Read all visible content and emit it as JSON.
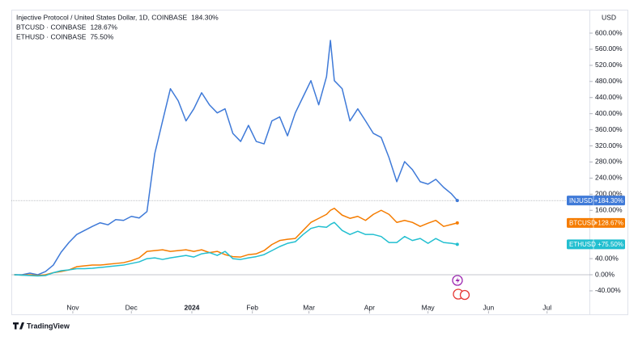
{
  "chart_data": {
    "type": "line",
    "currency_label": "USD",
    "branding": "TradingView",
    "x": [
      -30,
      -26,
      -22,
      -18,
      -14,
      -10,
      -6,
      -2,
      2,
      6,
      10,
      14,
      18,
      22,
      26,
      30,
      34,
      38,
      42,
      46,
      50,
      54,
      58,
      62,
      66,
      70,
      74,
      78,
      82,
      86,
      90,
      94,
      98,
      102,
      106,
      110,
      114,
      118,
      122,
      126,
      130,
      132,
      134,
      138,
      142,
      146,
      150,
      154,
      158,
      162,
      166,
      170,
      174,
      178,
      182,
      186,
      190,
      194,
      197
    ],
    "xlim": [
      -31.5,
      264.7
    ],
    "xticks": [
      {
        "value": 0,
        "label": "Nov"
      },
      {
        "value": 30,
        "label": "Dec"
      },
      {
        "value": 61,
        "label": "2024"
      },
      {
        "value": 92,
        "label": "Feb"
      },
      {
        "value": 121,
        "label": "Mar"
      },
      {
        "value": 152,
        "label": "Apr"
      },
      {
        "value": 182,
        "label": "May"
      },
      {
        "value": 213,
        "label": "Jun"
      },
      {
        "value": 243,
        "label": "Jul"
      }
    ],
    "ylim": [
      -96.3,
      658.2
    ],
    "yticks": [
      {
        "value": 600,
        "label": "600.00%"
      },
      {
        "value": 560,
        "label": "560.00%"
      },
      {
        "value": 520,
        "label": "520.00%"
      },
      {
        "value": 480,
        "label": "480.00%"
      },
      {
        "value": 440,
        "label": "440.00%"
      },
      {
        "value": 400,
        "label": "400.00%"
      },
      {
        "value": 360,
        "label": "360.00%"
      },
      {
        "value": 320,
        "label": "320.00%"
      },
      {
        "value": 280,
        "label": "280.00%"
      },
      {
        "value": 240,
        "label": "240.00%"
      },
      {
        "value": 200,
        "label": "200.00%"
      },
      {
        "value": 160,
        "label": "160.00%"
      },
      {
        "value": 40,
        "label": "40.00%"
      },
      {
        "value": 0,
        "label": "0.00%"
      },
      {
        "value": -40,
        "label": "-40.00%"
      }
    ],
    "grid": false,
    "series": [
      {
        "name": "Injective Protocol / United States Dollar, 1D, COINBASE",
        "symbol": "INJUSD",
        "color": "#3f7ad8",
        "last_value_label": "184.30%",
        "axis_tag_label": "+184.30%",
        "values": [
          0,
          0,
          4,
          0,
          8,
          24,
          56,
          80,
          100,
          110,
          120,
          129,
          124,
          137,
          135,
          145,
          141,
          157,
          301,
          382,
          462,
          432,
          382,
          412,
          452,
          422,
          402,
          412,
          351,
          331,
          371,
          331,
          325,
          382,
          392,
          345,
          402,
          442,
          482,
          422,
          492,
          582,
          482,
          462,
          382,
          412,
          382,
          351,
          341,
          291,
          231,
          281,
          261,
          231,
          225,
          237,
          217,
          201,
          184.3
        ]
      },
      {
        "name": "BTCUSD · COINBASE",
        "symbol": "BTCUSD",
        "color": "#f57c00",
        "last_value_label": "128.67%",
        "axis_tag_label": "+128.67%",
        "values": [
          0,
          -1,
          0,
          -2,
          0,
          5,
          8,
          12,
          20,
          22,
          24,
          24,
          26,
          28,
          30,
          35,
          42,
          58,
          60,
          62,
          58,
          60,
          62,
          58,
          62,
          55,
          58,
          50,
          45,
          44,
          50,
          52,
          60,
          75,
          85,
          88,
          90,
          110,
          130,
          140,
          150,
          160,
          165,
          148,
          140,
          145,
          135,
          150,
          160,
          150,
          130,
          135,
          130,
          120,
          128,
          135,
          120,
          125,
          128.67
        ]
      },
      {
        "name": "ETHUSD · COINBASE",
        "symbol": "ETHUSD",
        "color": "#22bfd0",
        "last_value_label": "75.50%",
        "axis_tag_label": "+75.50%",
        "values": [
          0,
          -1,
          -2,
          -3,
          -2,
          5,
          10,
          12,
          15,
          15,
          16,
          18,
          20,
          22,
          24,
          28,
          32,
          40,
          42,
          38,
          42,
          45,
          48,
          44,
          52,
          55,
          48,
          58,
          40,
          38,
          42,
          45,
          50,
          60,
          70,
          78,
          82,
          100,
          115,
          120,
          118,
          125,
          130,
          110,
          100,
          108,
          100,
          100,
          95,
          80,
          80,
          95,
          85,
          90,
          78,
          90,
          80,
          78,
          75.5
        ]
      }
    ]
  }
}
